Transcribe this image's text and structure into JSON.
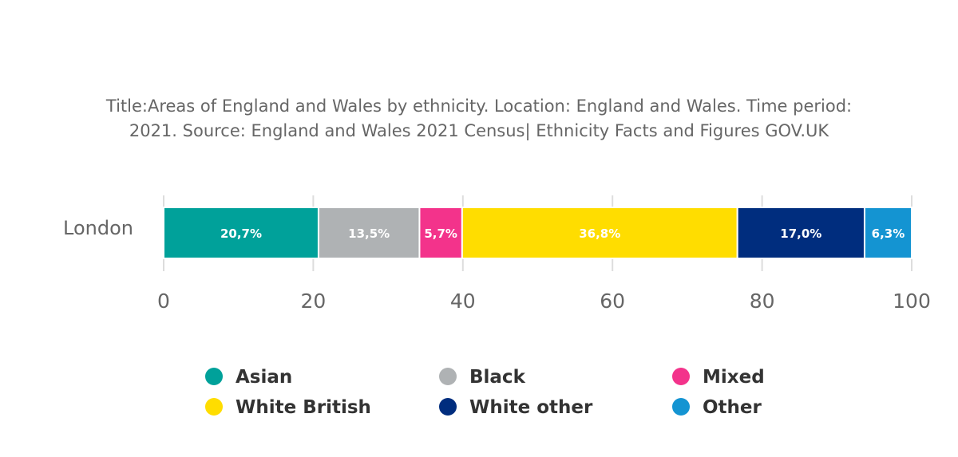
{
  "chart_data": {
    "type": "bar",
    "orientation": "horizontal",
    "stacked": true,
    "title_lines": [
      "Title:Areas of England and Wales by ethnicity. Location: England and Wales. Time period:",
      "2021. Source: England and Wales 2021 Census| Ethnicity Facts and Figures GOV.UK"
    ],
    "categories": [
      "London"
    ],
    "series": [
      {
        "name": "Asian",
        "values": [
          20.7
        ],
        "label": "20,7%",
        "color": "#00A19A"
      },
      {
        "name": "Black",
        "values": [
          13.5
        ],
        "label": "13,5%",
        "color": "#AFB2B4"
      },
      {
        "name": "Mixed",
        "values": [
          5.7
        ],
        "label": "5,7%",
        "color": "#F3338B"
      },
      {
        "name": "White British",
        "values": [
          36.8
        ],
        "label": "36,8%",
        "color": "#FFDD00"
      },
      {
        "name": "White other",
        "values": [
          17.0
        ],
        "label": "17,0%",
        "color": "#002D7E"
      },
      {
        "name": "Other",
        "values": [
          6.3
        ],
        "label": "6,3%",
        "color": "#1494D2"
      }
    ],
    "xlim": [
      0,
      100
    ],
    "xticks": [
      "0",
      "20",
      "40",
      "60",
      "80",
      "100"
    ],
    "xtick_values": [
      0,
      20,
      40,
      60,
      80,
      100
    ],
    "grid": true,
    "legend_position": "bottom",
    "legend_columns": 3
  }
}
